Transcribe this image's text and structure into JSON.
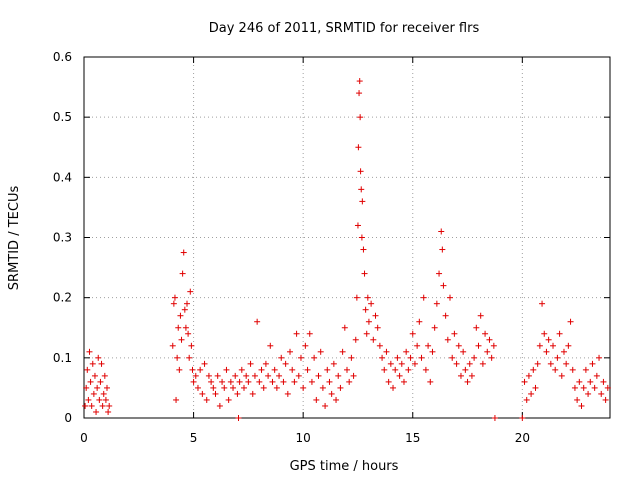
{
  "chart_data": {
    "type": "scatter",
    "title": "Day 246 of 2011, SRMTID for receiver flrs",
    "xlabel": "GPS time / hours",
    "ylabel": "SRMTID / TECUs",
    "xlim": [
      0,
      24
    ],
    "ylim": [
      0,
      0.6
    ],
    "grid": true,
    "marker": "+",
    "color": "#e00000",
    "x_ticks": [
      0,
      5,
      10,
      15,
      20
    ],
    "x_tick_labels": [
      "0",
      "5",
      "10",
      "15",
      "20"
    ],
    "y_ticks": [
      0,
      0.1,
      0.2,
      0.3,
      0.4,
      0.5,
      0.6
    ],
    "y_tick_labels": [
      "0",
      "0.1",
      "0.2",
      "0.3",
      "0.4",
      "0.5",
      "0.6"
    ],
    "series": [
      {
        "name": "SRMTID",
        "points": [
          [
            0.05,
            0.02
          ],
          [
            0.1,
            0.05
          ],
          [
            0.15,
            0.08
          ],
          [
            0.2,
            0.03
          ],
          [
            0.25,
            0.11
          ],
          [
            0.3,
            0.06
          ],
          [
            0.35,
            0.02
          ],
          [
            0.4,
            0.09
          ],
          [
            0.45,
            0.04
          ],
          [
            0.5,
            0.07
          ],
          [
            0.55,
            0.01
          ],
          [
            0.6,
            0.05
          ],
          [
            0.65,
            0.1
          ],
          [
            0.7,
            0.03
          ],
          [
            0.75,
            0.06
          ],
          [
            0.8,
            0.09
          ],
          [
            0.85,
            0.02
          ],
          [
            0.9,
            0.04
          ],
          [
            0.95,
            0.07
          ],
          [
            1.0,
            0.03
          ],
          [
            1.05,
            0.05
          ],
          [
            1.1,
            0.01
          ],
          [
            1.15,
            0.02
          ],
          [
            4.05,
            0.12
          ],
          [
            4.1,
            0.19
          ],
          [
            4.15,
            0.2
          ],
          [
            4.2,
            0.03
          ],
          [
            4.25,
            0.1
          ],
          [
            4.3,
            0.15
          ],
          [
            4.35,
            0.08
          ],
          [
            4.4,
            0.17
          ],
          [
            4.45,
            0.13
          ],
          [
            4.5,
            0.24
          ],
          [
            4.55,
            0.275
          ],
          [
            4.6,
            0.18
          ],
          [
            4.65,
            0.15
          ],
          [
            4.7,
            0.19
          ],
          [
            4.75,
            0.14
          ],
          [
            4.8,
            0.1
          ],
          [
            4.85,
            0.21
          ],
          [
            4.9,
            0.12
          ],
          [
            4.95,
            0.08
          ],
          [
            5.0,
            0.06
          ],
          [
            5.1,
            0.07
          ],
          [
            5.2,
            0.05
          ],
          [
            5.3,
            0.08
          ],
          [
            5.4,
            0.04
          ],
          [
            5.5,
            0.09
          ],
          [
            5.6,
            0.03
          ],
          [
            5.7,
            0.07
          ],
          [
            5.8,
            0.06
          ],
          [
            5.9,
            0.05
          ],
          [
            6.0,
            0.04
          ],
          [
            6.1,
            0.07
          ],
          [
            6.2,
            0.02
          ],
          [
            6.3,
            0.06
          ],
          [
            6.4,
            0.05
          ],
          [
            6.5,
            0.08
          ],
          [
            6.6,
            0.03
          ],
          [
            6.7,
            0.06
          ],
          [
            6.8,
            0.05
          ],
          [
            6.9,
            0.07
          ],
          [
            7.0,
            0.04
          ],
          [
            7.05,
            0.0
          ],
          [
            7.1,
            0.06
          ],
          [
            7.2,
            0.08
          ],
          [
            7.3,
            0.05
          ],
          [
            7.4,
            0.07
          ],
          [
            7.5,
            0.06
          ],
          [
            7.6,
            0.09
          ],
          [
            7.7,
            0.04
          ],
          [
            7.8,
            0.07
          ],
          [
            7.9,
            0.16
          ],
          [
            8.0,
            0.06
          ],
          [
            8.1,
            0.08
          ],
          [
            8.2,
            0.05
          ],
          [
            8.3,
            0.09
          ],
          [
            8.4,
            0.07
          ],
          [
            8.5,
            0.12
          ],
          [
            8.6,
            0.06
          ],
          [
            8.7,
            0.08
          ],
          [
            8.8,
            0.05
          ],
          [
            8.9,
            0.07
          ],
          [
            9.0,
            0.1
          ],
          [
            9.1,
            0.06
          ],
          [
            9.2,
            0.09
          ],
          [
            9.3,
            0.04
          ],
          [
            9.4,
            0.11
          ],
          [
            9.5,
            0.08
          ],
          [
            9.6,
            0.06
          ],
          [
            9.7,
            0.14
          ],
          [
            9.8,
            0.07
          ],
          [
            9.9,
            0.1
          ],
          [
            10.0,
            0.05
          ],
          [
            10.1,
            0.12
          ],
          [
            10.2,
            0.08
          ],
          [
            10.3,
            0.14
          ],
          [
            10.4,
            0.06
          ],
          [
            10.5,
            0.1
          ],
          [
            10.6,
            0.03
          ],
          [
            10.7,
            0.07
          ],
          [
            10.8,
            0.11
          ],
          [
            10.9,
            0.05
          ],
          [
            11.0,
            0.02
          ],
          [
            11.1,
            0.08
          ],
          [
            11.2,
            0.06
          ],
          [
            11.3,
            0.04
          ],
          [
            11.4,
            0.09
          ],
          [
            11.5,
            0.03
          ],
          [
            11.6,
            0.07
          ],
          [
            11.7,
            0.05
          ],
          [
            11.8,
            0.11
          ],
          [
            11.9,
            0.15
          ],
          [
            12.0,
            0.08
          ],
          [
            12.1,
            0.06
          ],
          [
            12.2,
            0.1
          ],
          [
            12.3,
            0.07
          ],
          [
            12.4,
            0.13
          ],
          [
            12.45,
            0.2
          ],
          [
            12.5,
            0.32
          ],
          [
            12.52,
            0.45
          ],
          [
            12.55,
            0.54
          ],
          [
            12.58,
            0.56
          ],
          [
            12.6,
            0.5
          ],
          [
            12.62,
            0.41
          ],
          [
            12.65,
            0.38
          ],
          [
            12.68,
            0.3
          ],
          [
            12.7,
            0.36
          ],
          [
            12.75,
            0.28
          ],
          [
            12.8,
            0.24
          ],
          [
            12.85,
            0.18
          ],
          [
            12.9,
            0.14
          ],
          [
            12.95,
            0.2
          ],
          [
            13.0,
            0.16
          ],
          [
            13.1,
            0.19
          ],
          [
            13.2,
            0.13
          ],
          [
            13.3,
            0.17
          ],
          [
            13.4,
            0.15
          ],
          [
            13.5,
            0.12
          ],
          [
            13.6,
            0.1
          ],
          [
            13.7,
            0.08
          ],
          [
            13.8,
            0.11
          ],
          [
            13.9,
            0.06
          ],
          [
            14.0,
            0.09
          ],
          [
            14.1,
            0.05
          ],
          [
            14.2,
            0.08
          ],
          [
            14.3,
            0.1
          ],
          [
            14.4,
            0.07
          ],
          [
            14.5,
            0.09
          ],
          [
            14.6,
            0.06
          ],
          [
            14.7,
            0.11
          ],
          [
            14.8,
            0.08
          ],
          [
            14.9,
            0.1
          ],
          [
            15.0,
            0.14
          ],
          [
            15.1,
            0.09
          ],
          [
            15.2,
            0.12
          ],
          [
            15.3,
            0.16
          ],
          [
            15.4,
            0.1
          ],
          [
            15.5,
            0.2
          ],
          [
            15.6,
            0.08
          ],
          [
            15.7,
            0.12
          ],
          [
            15.8,
            0.06
          ],
          [
            15.9,
            0.11
          ],
          [
            16.0,
            0.15
          ],
          [
            16.1,
            0.19
          ],
          [
            16.2,
            0.24
          ],
          [
            16.3,
            0.31
          ],
          [
            16.35,
            0.28
          ],
          [
            16.4,
            0.22
          ],
          [
            16.5,
            0.17
          ],
          [
            16.6,
            0.13
          ],
          [
            16.7,
            0.2
          ],
          [
            16.8,
            0.1
          ],
          [
            16.9,
            0.14
          ],
          [
            17.0,
            0.09
          ],
          [
            17.1,
            0.12
          ],
          [
            17.2,
            0.07
          ],
          [
            17.3,
            0.11
          ],
          [
            17.4,
            0.08
          ],
          [
            17.5,
            0.06
          ],
          [
            17.6,
            0.09
          ],
          [
            17.7,
            0.07
          ],
          [
            17.8,
            0.1
          ],
          [
            17.9,
            0.15
          ],
          [
            18.0,
            0.12
          ],
          [
            18.1,
            0.17
          ],
          [
            18.2,
            0.09
          ],
          [
            18.3,
            0.14
          ],
          [
            18.4,
            0.11
          ],
          [
            18.5,
            0.13
          ],
          [
            18.6,
            0.1
          ],
          [
            18.7,
            0.12
          ],
          [
            18.75,
            0.0
          ],
          [
            20.0,
            0.0
          ],
          [
            20.1,
            0.06
          ],
          [
            20.2,
            0.03
          ],
          [
            20.3,
            0.07
          ],
          [
            20.4,
            0.04
          ],
          [
            20.5,
            0.08
          ],
          [
            20.6,
            0.05
          ],
          [
            20.7,
            0.09
          ],
          [
            20.8,
            0.12
          ],
          [
            20.9,
            0.19
          ],
          [
            21.0,
            0.14
          ],
          [
            21.1,
            0.11
          ],
          [
            21.2,
            0.13
          ],
          [
            21.3,
            0.09
          ],
          [
            21.4,
            0.12
          ],
          [
            21.5,
            0.08
          ],
          [
            21.6,
            0.1
          ],
          [
            21.7,
            0.14
          ],
          [
            21.8,
            0.07
          ],
          [
            21.9,
            0.11
          ],
          [
            22.0,
            0.09
          ],
          [
            22.1,
            0.12
          ],
          [
            22.2,
            0.16
          ],
          [
            22.3,
            0.08
          ],
          [
            22.4,
            0.05
          ],
          [
            22.5,
            0.03
          ],
          [
            22.6,
            0.06
          ],
          [
            22.7,
            0.02
          ],
          [
            22.8,
            0.05
          ],
          [
            22.9,
            0.08
          ],
          [
            23.0,
            0.04
          ],
          [
            23.1,
            0.06
          ],
          [
            23.2,
            0.09
          ],
          [
            23.3,
            0.05
          ],
          [
            23.4,
            0.07
          ],
          [
            23.5,
            0.1
          ],
          [
            23.6,
            0.04
          ],
          [
            23.7,
            0.06
          ],
          [
            23.8,
            0.03
          ],
          [
            23.9,
            0.05
          ]
        ]
      }
    ]
  }
}
